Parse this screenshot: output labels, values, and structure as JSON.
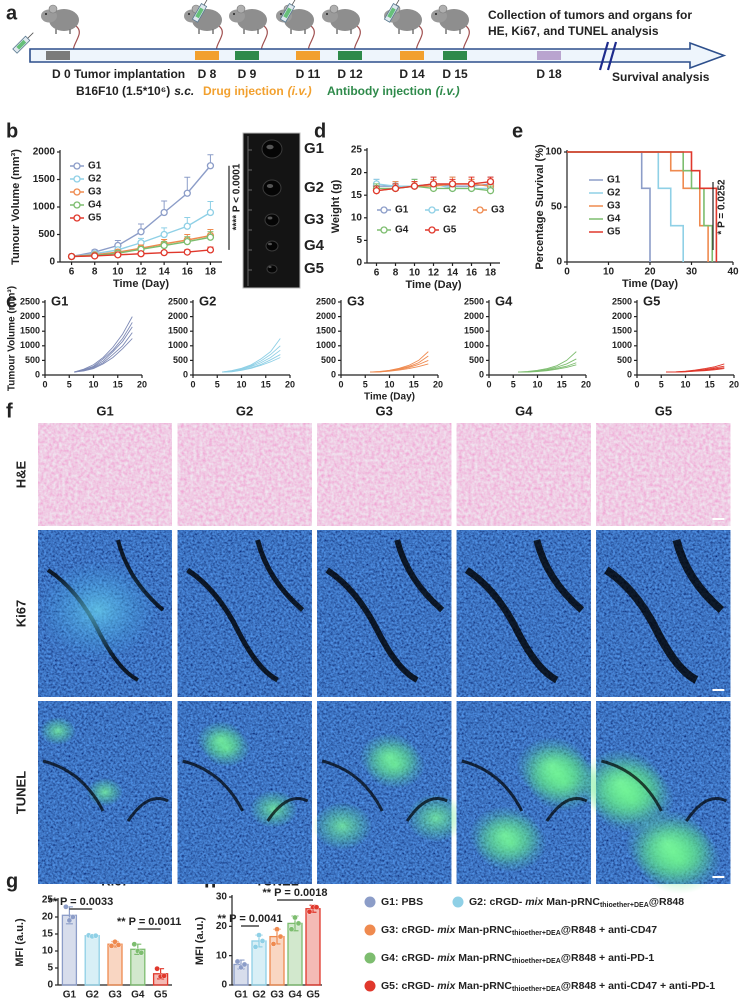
{
  "timeline": {
    "panel": "a",
    "implant": {
      "text": "D 0 Tumor implantation",
      "marker_color": "#7b7b7b"
    },
    "cells": {
      "text": "B16F10 (1.5*10⁶)",
      "route": "s.c."
    },
    "days": [
      {
        "label": "D 8",
        "color": "#f2a02e"
      },
      {
        "label": "D 9",
        "color": "#2e8a4a"
      },
      {
        "label": "D 11",
        "color": "#f2a02e"
      },
      {
        "label": "D 12",
        "color": "#2e8a4a"
      },
      {
        "label": "D 14",
        "color": "#f2a02e"
      },
      {
        "label": "D 15",
        "color": "#2e8a4a"
      },
      {
        "label": "D 18",
        "color": "#b9a4cf"
      }
    ],
    "drug": {
      "text": "Drug injection",
      "route": "(i.v.)",
      "color": "#f2a02e"
    },
    "antibody": {
      "text": "Antibody injection",
      "route": "(i.v.)",
      "color": "#2e8a4a"
    },
    "collection": {
      "lines": [
        "Collection of tumors and organs for",
        "HE, Ki67, and TUNEL analysis"
      ],
      "color": "#b9a4cf"
    },
    "survival": {
      "text": "Survival analysis",
      "color": "#1c2a8c"
    }
  },
  "tumor_photo": {
    "labels": [
      "G1",
      "G2",
      "G3",
      "G4",
      "G5"
    ],
    "colors": [
      "#8c9dc8",
      "#8fd0e6",
      "#ef8a4f",
      "#7dbd6f",
      "#e0382c"
    ]
  },
  "chart_data": [
    {
      "type": "line",
      "panel": "b",
      "xlabel": "Time (Day)",
      "ylabel": "Tumour Volume (mm³)",
      "x": [
        6,
        8,
        10,
        12,
        14,
        16,
        18
      ],
      "xlim": [
        5,
        19
      ],
      "xticks": [
        6,
        8,
        10,
        12,
        14,
        16,
        18
      ],
      "ylim": [
        0,
        2000
      ],
      "yticks": [
        0,
        500,
        1000,
        1500,
        2000
      ],
      "marker": "circle",
      "legend": "upper left",
      "annotation": "**** P < 0.0001",
      "series": [
        {
          "name": "G1",
          "color": "#8c9dc8",
          "values": [
            100,
            180,
            300,
            550,
            900,
            1250,
            1750
          ],
          "errors": [
            15,
            40,
            90,
            140,
            210,
            290,
            200
          ]
        },
        {
          "name": "G2",
          "color": "#8fd0e6",
          "values": [
            100,
            150,
            220,
            350,
            500,
            650,
            900
          ],
          "errors": [
            15,
            30,
            50,
            80,
            120,
            160,
            200
          ]
        },
        {
          "name": "G3",
          "color": "#ef8a4f",
          "values": [
            100,
            130,
            180,
            250,
            330,
            400,
            480
          ],
          "errors": [
            10,
            25,
            40,
            60,
            80,
            100,
            110
          ]
        },
        {
          "name": "G4",
          "color": "#7dbd6f",
          "values": [
            100,
            120,
            160,
            230,
            300,
            370,
            450
          ],
          "errors": [
            10,
            20,
            35,
            50,
            70,
            90,
            100
          ]
        },
        {
          "name": "G5",
          "color": "#e0382c",
          "values": [
            100,
            110,
            130,
            150,
            170,
            180,
            220
          ],
          "errors": [
            10,
            15,
            20,
            25,
            30,
            40,
            50
          ]
        }
      ]
    },
    {
      "type": "line",
      "panel": "d",
      "xlabel": "Time (Day)",
      "ylabel": "Weight (g)",
      "x": [
        6,
        8,
        10,
        12,
        14,
        16,
        18
      ],
      "xlim": [
        5,
        19
      ],
      "xticks": [
        6,
        8,
        10,
        12,
        14,
        16,
        18
      ],
      "ylim": [
        0,
        25
      ],
      "yticks": [
        0,
        5,
        10,
        15,
        20,
        25
      ],
      "marker": "circle",
      "legend": "center",
      "legend_columns": 3,
      "series": [
        {
          "name": "G1",
          "color": "#8c9dc8",
          "values": [
            17,
            17,
            17,
            17.5,
            17,
            17,
            17.5
          ],
          "errors": [
            1.5,
            1,
            1.5,
            1.5,
            2,
            1.5,
            1.5
          ]
        },
        {
          "name": "G2",
          "color": "#8fd0e6",
          "values": [
            17.5,
            17,
            17,
            17.5,
            16.5,
            16.5,
            16.5
          ],
          "errors": [
            1,
            1,
            1.5,
            1,
            1.5,
            1.5,
            1
          ]
        },
        {
          "name": "G3",
          "color": "#ef8a4f",
          "values": [
            16,
            16.5,
            17,
            17,
            17.5,
            17.5,
            17
          ],
          "errors": [
            1,
            1.5,
            1,
            1.5,
            1.5,
            1,
            1.5
          ]
        },
        {
          "name": "G4",
          "color": "#7dbd6f",
          "values": [
            16.5,
            16.5,
            17,
            16.5,
            16.5,
            16.5,
            16
          ],
          "errors": [
            1,
            1,
            1.5,
            1,
            1.5,
            1,
            1
          ]
        },
        {
          "name": "G5",
          "color": "#e0382c",
          "values": [
            16,
            16.5,
            17,
            17.5,
            17.5,
            17.5,
            18
          ],
          "errors": [
            1,
            1,
            1,
            1.5,
            1,
            1.5,
            1
          ]
        }
      ]
    },
    {
      "type": "step",
      "panel": "e",
      "xlabel": "Time (Day)",
      "ylabel": "Percentage Survival (%)",
      "xlim": [
        0,
        40
      ],
      "xticks": [
        0,
        10,
        20,
        30,
        40
      ],
      "ylim": [
        0,
        100
      ],
      "yticks": [
        0,
        50,
        100
      ],
      "legend": "center left",
      "annotation": "* P = 0.0252",
      "series": [
        {
          "name": "G1",
          "color": "#8c9dc8",
          "x": [
            0,
            18,
            20
          ],
          "values": [
            100,
            67,
            0
          ]
        },
        {
          "name": "G2",
          "color": "#8fd0e6",
          "x": [
            0,
            22,
            25,
            28
          ],
          "values": [
            100,
            67,
            33,
            0
          ]
        },
        {
          "name": "G3",
          "color": "#ef8a4f",
          "x": [
            0,
            25,
            28,
            32,
            34
          ],
          "values": [
            100,
            83,
            67,
            33,
            0
          ]
        },
        {
          "name": "G4",
          "color": "#7dbd6f",
          "x": [
            0,
            28,
            30,
            33,
            35
          ],
          "values": [
            100,
            83,
            67,
            33,
            0
          ]
        },
        {
          "name": "G5",
          "color": "#e0382c",
          "x": [
            0,
            30,
            32,
            36
          ],
          "values": [
            100,
            83,
            67,
            0
          ]
        }
      ]
    },
    {
      "type": "line",
      "panel": "c",
      "title": "G1",
      "color": "#7d89b5",
      "ylabel": "Tumour Volume (mm³)",
      "x": [
        6,
        8,
        10,
        12,
        14,
        16,
        18
      ],
      "xlim": [
        0,
        20
      ],
      "xticks": [
        0,
        5,
        10,
        15,
        20
      ],
      "ylim": [
        0,
        2500
      ],
      "yticks": [
        0,
        500,
        1000,
        1500,
        2000,
        2500
      ],
      "series": [
        {
          "values": [
            100,
            200,
            350,
            600,
            950,
            1400,
            2000
          ]
        },
        {
          "values": [
            100,
            180,
            300,
            550,
            850,
            1250,
            1800
          ]
        },
        {
          "values": [
            100,
            170,
            280,
            480,
            800,
            1150,
            1650
          ]
        },
        {
          "values": [
            100,
            150,
            250,
            420,
            700,
            1000,
            1450
          ]
        },
        {
          "values": [
            100,
            140,
            220,
            380,
            600,
            900,
            1250
          ]
        }
      ]
    },
    {
      "type": "line",
      "title": "G2",
      "color": "#8fd0e6",
      "x": [
        6,
        8,
        10,
        12,
        14,
        16,
        18
      ],
      "xlim": [
        0,
        20
      ],
      "xticks": [
        0,
        5,
        10,
        15,
        20
      ],
      "ylim": [
        0,
        2500
      ],
      "yticks": [
        0,
        500,
        1000,
        1500,
        2000,
        2500
      ],
      "series": [
        {
          "values": [
            100,
            150,
            230,
            350,
            550,
            800,
            1250
          ]
        },
        {
          "values": [
            100,
            140,
            210,
            320,
            480,
            700,
            1000
          ]
        },
        {
          "values": [
            100,
            130,
            190,
            290,
            420,
            600,
            850
          ]
        },
        {
          "values": [
            100,
            120,
            170,
            250,
            360,
            520,
            700
          ]
        },
        {
          "values": [
            100,
            110,
            160,
            230,
            330,
            450,
            600
          ]
        }
      ]
    },
    {
      "type": "line",
      "title": "G3",
      "color": "#ef8a4f",
      "xlabel": "Time (Day)",
      "x": [
        6,
        8,
        10,
        12,
        14,
        16,
        18
      ],
      "xlim": [
        0,
        20
      ],
      "xticks": [
        0,
        5,
        10,
        15,
        20
      ],
      "ylim": [
        0,
        2500
      ],
      "yticks": [
        0,
        500,
        1000,
        1500,
        2000,
        2500
      ],
      "series": [
        {
          "values": [
            100,
            120,
            160,
            230,
            330,
            500,
            800
          ]
        },
        {
          "values": [
            100,
            115,
            150,
            210,
            290,
            420,
            650
          ]
        },
        {
          "values": [
            100,
            110,
            140,
            190,
            260,
            360,
            500
          ]
        },
        {
          "values": [
            100,
            105,
            130,
            170,
            220,
            290,
            380
          ]
        }
      ]
    },
    {
      "type": "line",
      "title": "G4",
      "color": "#7dbd6f",
      "x": [
        6,
        8,
        10,
        12,
        14,
        16,
        18
      ],
      "xlim": [
        0,
        20
      ],
      "xticks": [
        0,
        5,
        10,
        15,
        20
      ],
      "ylim": [
        0,
        2500
      ],
      "yticks": [
        0,
        500,
        1000,
        1500,
        2000,
        2500
      ],
      "series": [
        {
          "values": [
            100,
            120,
            160,
            220,
            320,
            500,
            800
          ]
        },
        {
          "values": [
            100,
            110,
            140,
            190,
            270,
            380,
            550
          ]
        },
        {
          "values": [
            100,
            105,
            130,
            170,
            230,
            300,
            420
          ]
        },
        {
          "values": [
            100,
            100,
            120,
            150,
            200,
            260,
            350
          ]
        }
      ]
    },
    {
      "type": "line",
      "title": "G5",
      "color": "#e0382c",
      "x": [
        6,
        8,
        10,
        12,
        14,
        16,
        18
      ],
      "xlim": [
        0,
        20
      ],
      "xticks": [
        0,
        5,
        10,
        15,
        20
      ],
      "ylim": [
        0,
        2500
      ],
      "yticks": [
        0,
        500,
        1000,
        1500,
        2000,
        2500
      ],
      "series": [
        {
          "values": [
            100,
            110,
            130,
            170,
            220,
            280,
            380
          ]
        },
        {
          "values": [
            100,
            105,
            120,
            150,
            190,
            240,
            300
          ]
        },
        {
          "values": [
            100,
            100,
            115,
            140,
            170,
            210,
            250
          ]
        },
        {
          "values": [
            100,
            100,
            110,
            130,
            150,
            180,
            220
          ]
        }
      ]
    },
    {
      "type": "bar",
      "panel": "g",
      "title": "Ki67",
      "ylabel": "MFI (a.u.)",
      "categories": [
        "G1",
        "G2",
        "G3",
        "G4",
        "G5"
      ],
      "colors": [
        "#8c9dc8",
        "#8fd0e6",
        "#ef8a4f",
        "#7dbd6f",
        "#e0382c"
      ],
      "values": [
        20.5,
        14.5,
        12,
        10.5,
        3.3
      ],
      "errors": [
        2.5,
        0.3,
        0.8,
        1.5,
        1.5
      ],
      "points": [
        [
          23,
          19,
          20
        ],
        [
          14.6,
          14.3,
          14.5
        ],
        [
          11.5,
          12.7,
          11.8
        ],
        [
          12,
          10,
          9.5
        ],
        [
          4.8,
          2.5,
          2.7
        ]
      ],
      "ylim": [
        0,
        25
      ],
      "yticks": [
        0,
        5,
        10,
        15,
        20,
        25
      ],
      "annotations": [
        "** P = 0.0033",
        "** P = 0.0011"
      ]
    },
    {
      "type": "bar",
      "panel": "h",
      "title": "TUNEL",
      "ylabel": "MFI (a.u.)",
      "categories": [
        "G1",
        "G2",
        "G3",
        "G4",
        "G5"
      ],
      "colors": [
        "#8c9dc8",
        "#8fd0e6",
        "#ef8a4f",
        "#7dbd6f",
        "#e0382c"
      ],
      "values": [
        7,
        15,
        16.5,
        21,
        26
      ],
      "errors": [
        1.5,
        2,
        2.5,
        2.5,
        1.2
      ],
      "points": [
        [
          8,
          6,
          7
        ],
        [
          13,
          17,
          15
        ],
        [
          14,
          19,
          16.5
        ],
        [
          19,
          23,
          21
        ],
        [
          25,
          26.5,
          26.5
        ]
      ],
      "ylim": [
        0,
        30
      ],
      "yticks": [
        0,
        10,
        20,
        30
      ],
      "annotations": [
        "** P = 0.0041",
        "** P = 0.0018"
      ]
    }
  ],
  "histology": {
    "panel": "f",
    "columns": [
      "G1",
      "G2",
      "G3",
      "G4",
      "G5"
    ],
    "column_colors": [
      "#8c9dc8",
      "#8fd0e6",
      "#ef8a4f",
      "#7dbd6f",
      "#e0382c"
    ],
    "rows": [
      "H&E",
      "Ki67",
      "TUNEL"
    ]
  },
  "treatment_legend": [
    {
      "color": "#8c9dc8",
      "group": "G1:",
      "text": "PBS"
    },
    {
      "color": "#8fd0e6",
      "group": "G2:",
      "text": "cRGD-",
      "mix": "mix",
      "base": "Man-pRNC",
      "sub": "thioether+DEA",
      "tail": "@R848"
    },
    {
      "color": "#ef8a4f",
      "group": "G3:",
      "text": "cRGD-",
      "mix": "mix",
      "base": "Man-pRNC",
      "sub": "thioether+DEA",
      "tail": "@R848 + anti-CD47"
    },
    {
      "color": "#7dbd6f",
      "group": "G4:",
      "text": "cRGD-",
      "mix": "mix",
      "base": "Man-pRNC",
      "sub": "thioether+DEA",
      "tail": "@R848 + anti-PD-1"
    },
    {
      "color": "#e0382c",
      "group": "G5:",
      "text": "cRGD-",
      "mix": "mix",
      "base": "Man-pRNC",
      "sub": "thioether+DEA",
      "tail": "@R848 + anti-CD47 + anti-PD-1"
    }
  ]
}
